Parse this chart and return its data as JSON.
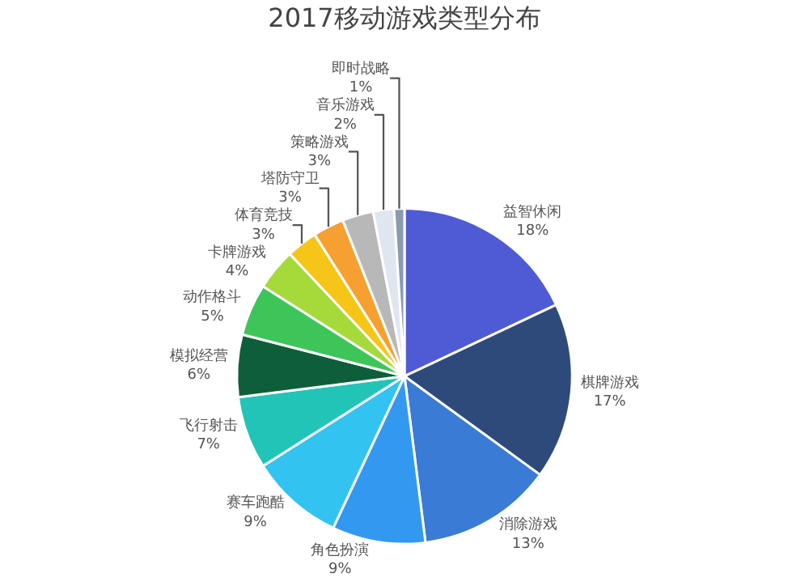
{
  "chart_data": {
    "type": "pie",
    "title": "2017移动游戏类型分布",
    "categories": [
      "益智休闲",
      "棋牌游戏",
      "消除游戏",
      "角色扮演",
      "赛车跑酷",
      "飞行射击",
      "模拟经营",
      "动作格斗",
      "卡牌游戏",
      "体育竞技",
      "塔防守卫",
      "策略游戏",
      "音乐游戏",
      "即时战略"
    ],
    "values": [
      18,
      17,
      13,
      9,
      9,
      7,
      6,
      5,
      4,
      3,
      3,
      3,
      2,
      1
    ],
    "value_labels": [
      "18%",
      "17%",
      "13%",
      "9%",
      "9%",
      "7%",
      "6%",
      "5%",
      "4%",
      "3%",
      "3%",
      "3%",
      "2%",
      "1%"
    ],
    "colors": [
      "#4f5bd5",
      "#2e4a7a",
      "#3a7bd5",
      "#3399f0",
      "#33c3f0",
      "#22c4b8",
      "#0e5e3a",
      "#3dc55a",
      "#a6d93a",
      "#f5c518",
      "#f5a030",
      "#b8b8b8",
      "#e0e6f0",
      "#8a9ab0"
    ],
    "legend": false
  }
}
